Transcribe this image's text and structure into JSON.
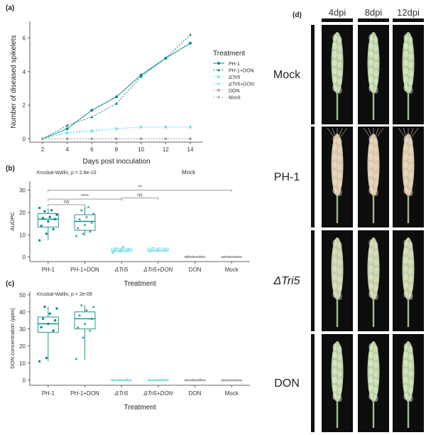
{
  "panels": {
    "a": {
      "tag": "(a)"
    },
    "b": {
      "tag": "(b)"
    },
    "c": {
      "tag": "(c)"
    },
    "d": {
      "tag": "(d)"
    }
  },
  "chart_data": [
    {
      "panel": "a",
      "type": "line",
      "xlabel": "Days post inoculation",
      "ylabel": "Number of diseased spikelets",
      "x": [
        2,
        4,
        6,
        8,
        10,
        12,
        14
      ],
      "xticks": [
        "2",
        "4",
        "6",
        "8",
        "10",
        "12",
        "14"
      ],
      "yticks": [
        "0",
        "2",
        "4",
        "6"
      ],
      "ylim": [
        -0.2,
        7.0
      ],
      "grid": false,
      "legend": {
        "title": "Treatment",
        "position": "right",
        "entries": [
          {
            "label": "PH-1",
            "italic": false
          },
          {
            "label": "PH-1+DON",
            "italic": false
          },
          {
            "label": "ΔTri5",
            "italic": true
          },
          {
            "label": "ΔTri5+DON",
            "italic": true
          },
          {
            "label": "DON",
            "italic": false
          },
          {
            "label": "Mock",
            "italic": false
          }
        ]
      },
      "series": [
        {
          "name": "PH-1",
          "color": "#0b8a8a",
          "marker": "circle",
          "dashed": false,
          "values": [
            0.0,
            0.6,
            1.7,
            2.5,
            3.8,
            4.8,
            5.7
          ]
        },
        {
          "name": "PH-1+DON",
          "color": "#0b8a8a",
          "marker": "triangle",
          "dashed": true,
          "values": [
            0.0,
            0.8,
            1.3,
            2.1,
            3.7,
            4.8,
            6.2
          ]
        },
        {
          "name": "ΔTri5",
          "color": "#7ee0e8",
          "marker": "circle",
          "dashed": true,
          "values": [
            0.0,
            0.35,
            0.45,
            0.6,
            0.7,
            0.7,
            0.7
          ]
        },
        {
          "name": "ΔTri5+DON",
          "color": "#7ee0e8",
          "marker": "triangle",
          "dashed": true,
          "values": [
            0.0,
            0.4,
            0.5,
            0.6,
            0.7,
            0.7,
            0.7
          ]
        },
        {
          "name": "DON",
          "color": "#aaaaaa",
          "marker": "circle",
          "dashed": true,
          "values": [
            0.0,
            0.0,
            0.0,
            0.0,
            0.0,
            0.0,
            0.0
          ]
        },
        {
          "name": "Mock",
          "color": "#aaaaaa",
          "marker": "triangle",
          "dashed": true,
          "values": [
            0.0,
            0.0,
            0.0,
            0.0,
            0.0,
            0.0,
            0.0
          ]
        }
      ]
    },
    {
      "panel": "b",
      "type": "box",
      "ylabel": "AUDPC",
      "xlabel": "Treatment",
      "annotation": "Kruskal-Wallis, p = 2.8e-10",
      "title_text": "Mock",
      "categories": [
        "PH-1",
        "PH-1+DON",
        "ΔTri5",
        "ΔTri5+DON",
        "DON",
        "Mock"
      ],
      "italic": [
        false,
        false,
        true,
        true,
        false,
        false
      ],
      "yticks": [
        "0",
        "10",
        "20",
        "30"
      ],
      "ylim": [
        -2,
        34
      ],
      "boxes": [
        {
          "min": 7.5,
          "q1": 13.5,
          "median": 17,
          "q3": 19.5,
          "max": 22,
          "color": "#0b8a8a",
          "marker": "circle",
          "points": [
            7.5,
            10.5,
            12.5,
            14,
            16,
            17,
            17.5,
            18,
            19,
            20.5,
            21,
            22
          ]
        },
        {
          "min": 9.5,
          "q1": 12,
          "median": 16,
          "q3": 19,
          "max": 22.5,
          "color": "#0b8a8a",
          "marker": "triangle",
          "points": [
            9.5,
            10.5,
            11.5,
            13,
            14.5,
            15.5,
            17,
            18,
            19.5,
            21,
            22.5
          ]
        },
        {
          "min": 2,
          "q1": 2.5,
          "median": 3,
          "q3": 3.8,
          "max": 4.5,
          "color": "#7ee0e8",
          "marker": "circle",
          "points": [
            2,
            2.5,
            2.8,
            3,
            3.3,
            3.6,
            4,
            4.5
          ]
        },
        {
          "min": 2.5,
          "q1": 2.7,
          "median": 3.1,
          "q3": 4,
          "max": 4.5,
          "color": "#7ee0e8",
          "marker": "triangle",
          "points": [
            2.6,
            2.8,
            3,
            3.2,
            3.6,
            4,
            4.3
          ]
        },
        {
          "min": 0,
          "q1": 0,
          "median": 0,
          "q3": 0.3,
          "max": 0.4,
          "color": "#aaaaaa",
          "marker": "circle",
          "points": [
            0,
            0.1,
            0.2,
            0.3
          ]
        },
        {
          "min": 0,
          "q1": 0,
          "median": 0,
          "q3": 0.3,
          "max": 0.4,
          "color": "#aaaaaa",
          "marker": "triangle",
          "points": [
            0,
            0.1,
            0.2,
            0.3
          ]
        }
      ],
      "brackets": [
        {
          "from": 0,
          "to": 1,
          "y": 23.5,
          "label": "ns"
        },
        {
          "from": 0,
          "to": 2,
          "y": 26,
          "label": "****"
        },
        {
          "from": 2,
          "to": 3,
          "y": 26.5,
          "label": "ns"
        },
        {
          "from": 0,
          "to": 5,
          "y": 30,
          "label": "**"
        }
      ]
    },
    {
      "panel": "c",
      "type": "box",
      "ylabel": "DON concentration (ppm)",
      "xlabel": "Treatment",
      "annotation": "Kruskal-Wallis, p = 2e-09",
      "categories": [
        "PH-1",
        "PH-1+DON",
        "ΔTri5",
        "ΔTri5+DON",
        "DON",
        "Mock"
      ],
      "italic": [
        false,
        false,
        true,
        true,
        false,
        false
      ],
      "yticks": [
        "0",
        "10",
        "20",
        "30",
        "40",
        "50"
      ],
      "ylim": [
        -3,
        52
      ],
      "boxes": [
        {
          "min": 11,
          "q1": 28,
          "median": 33,
          "q3": 37,
          "max": 43,
          "color": "#0b8a8a",
          "marker": "circle",
          "points": [
            11,
            13,
            29,
            31,
            33,
            35,
            36,
            39,
            42,
            43
          ]
        },
        {
          "min": 12,
          "q1": 30,
          "median": 36,
          "q3": 40,
          "max": 44,
          "color": "#0b8a8a",
          "marker": "triangle",
          "points": [
            12.5,
            25,
            29,
            31,
            33,
            36,
            38,
            41,
            43,
            44
          ]
        },
        {
          "min": 0,
          "q1": 0,
          "median": 0,
          "q3": 0.2,
          "max": 0.3,
          "color": "#7ee0e8",
          "marker": "circle",
          "points": [
            0,
            0.1,
            0.2
          ]
        },
        {
          "min": 0,
          "q1": 0,
          "median": 0,
          "q3": 0.2,
          "max": 0.3,
          "color": "#7ee0e8",
          "marker": "triangle",
          "points": [
            0,
            0.1,
            0.2
          ]
        },
        {
          "min": 0,
          "q1": 0,
          "median": 0,
          "q3": 0.2,
          "max": 0.3,
          "color": "#aaaaaa",
          "marker": "circle",
          "points": [
            0,
            0.1,
            0.2
          ]
        },
        {
          "min": 0,
          "q1": 0,
          "median": 0,
          "q3": 0.2,
          "max": 0.3,
          "color": "#aaaaaa",
          "marker": "triangle",
          "points": [
            0,
            0.1,
            0.2
          ]
        }
      ]
    }
  ],
  "photo_panel": {
    "columns": [
      "4dpi",
      "8dpi",
      "12dpi"
    ],
    "rows": [
      {
        "label": "Mock",
        "italic": false,
        "tone": "green"
      },
      {
        "label": "PH-1",
        "italic": false,
        "tone": "bleached"
      },
      {
        "label": "ΔTri5",
        "italic": true,
        "tone": "mild"
      },
      {
        "label": "DON",
        "italic": false,
        "tone": "green"
      }
    ]
  }
}
